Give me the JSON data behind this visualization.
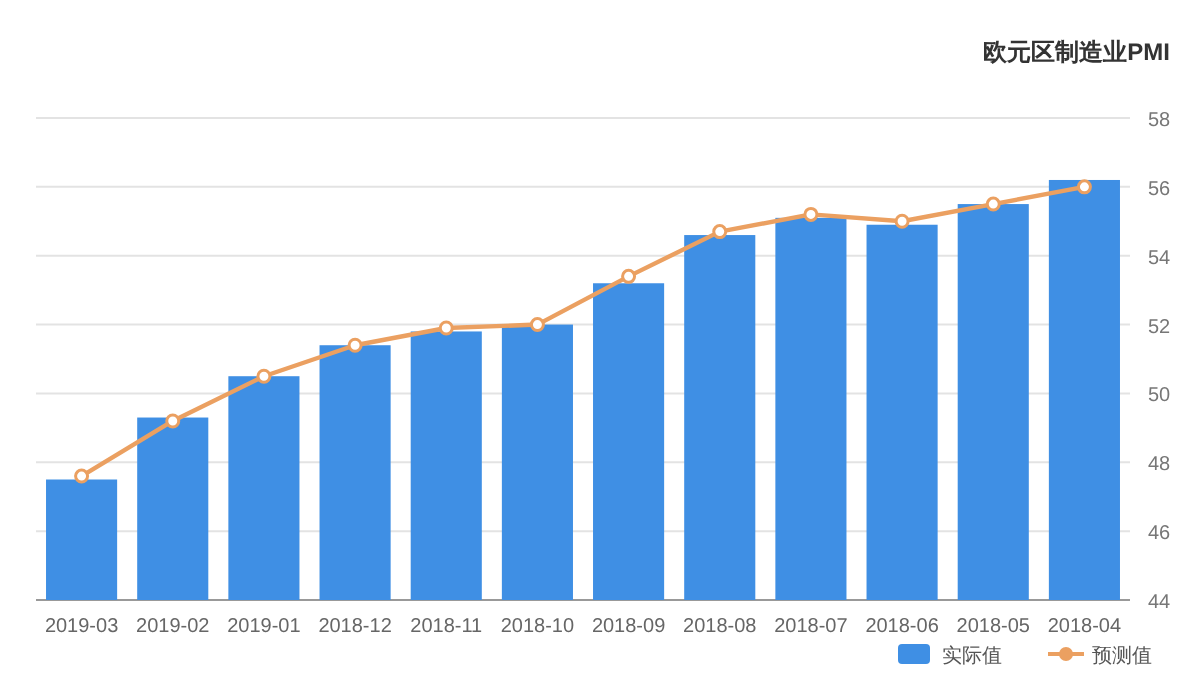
{
  "chart_data": {
    "type": "bar",
    "title": "欧元区制造业PMI",
    "categories": [
      "2019-03",
      "2019-02",
      "2019-01",
      "2018-12",
      "2018-11",
      "2018-10",
      "2018-09",
      "2018-08",
      "2018-07",
      "2018-06",
      "2018-05",
      "2018-04"
    ],
    "series": [
      {
        "name": "实际值",
        "color": "#3f8fe4",
        "values": [
          47.5,
          49.3,
          50.5,
          51.4,
          51.8,
          52.0,
          53.2,
          54.6,
          55.1,
          54.9,
          55.5,
          56.2
        ]
      },
      {
        "name": "预测值",
        "type": "line",
        "color": "#eba061",
        "values": [
          47.6,
          49.2,
          50.5,
          51.4,
          51.9,
          52.0,
          53.4,
          54.7,
          55.2,
          55.0,
          55.5,
          56.0
        ]
      }
    ],
    "ylim": [
      44,
      58
    ],
    "yticks": [
      44,
      46,
      48,
      50,
      52,
      54,
      56,
      58
    ],
    "grid": "y",
    "legend": "bottom right",
    "marker": "circle"
  }
}
